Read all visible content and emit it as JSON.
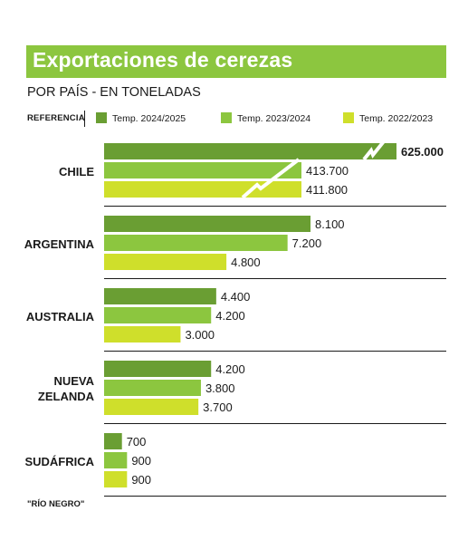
{
  "title": "Exportaciones de cerezas",
  "subtitle": "POR PAÍS - EN TONELADAS",
  "legend_label": "REFERENCIA",
  "colors": {
    "brand": "#8cc63f"
  },
  "source": "\"RÍO NEGRO\"",
  "chart_data": {
    "type": "bar",
    "orientation": "horizontal",
    "categories": [
      "CHILE",
      "ARGENTINA",
      "AUSTRALIA",
      "NUEVA ZELANDA",
      "SUDÁFRICA"
    ],
    "series": [
      {
        "name": "Temp. 2024/2025",
        "color": "#6a9e33",
        "values": [
          625000,
          8100,
          4400,
          4200,
          700
        ],
        "labels": [
          "625.000",
          "8.100",
          "4.400",
          "4.200",
          "700"
        ]
      },
      {
        "name": "Temp. 2023/2024",
        "color": "#8cc63f",
        "values": [
          413700,
          7200,
          4200,
          3800,
          900
        ],
        "labels": [
          "413.700",
          "7.200",
          "4.200",
          "3.800",
          "900"
        ]
      },
      {
        "name": "Temp. 2022/2023",
        "color": "#cfdf2b",
        "values": [
          411800,
          4800,
          3000,
          3700,
          900
        ],
        "labels": [
          "411.800",
          "4.800",
          "3.000",
          "3.700",
          "900"
        ]
      }
    ],
    "axis_break": {
      "category": "CHILE"
    },
    "grid": false,
    "legend_position": "top"
  }
}
